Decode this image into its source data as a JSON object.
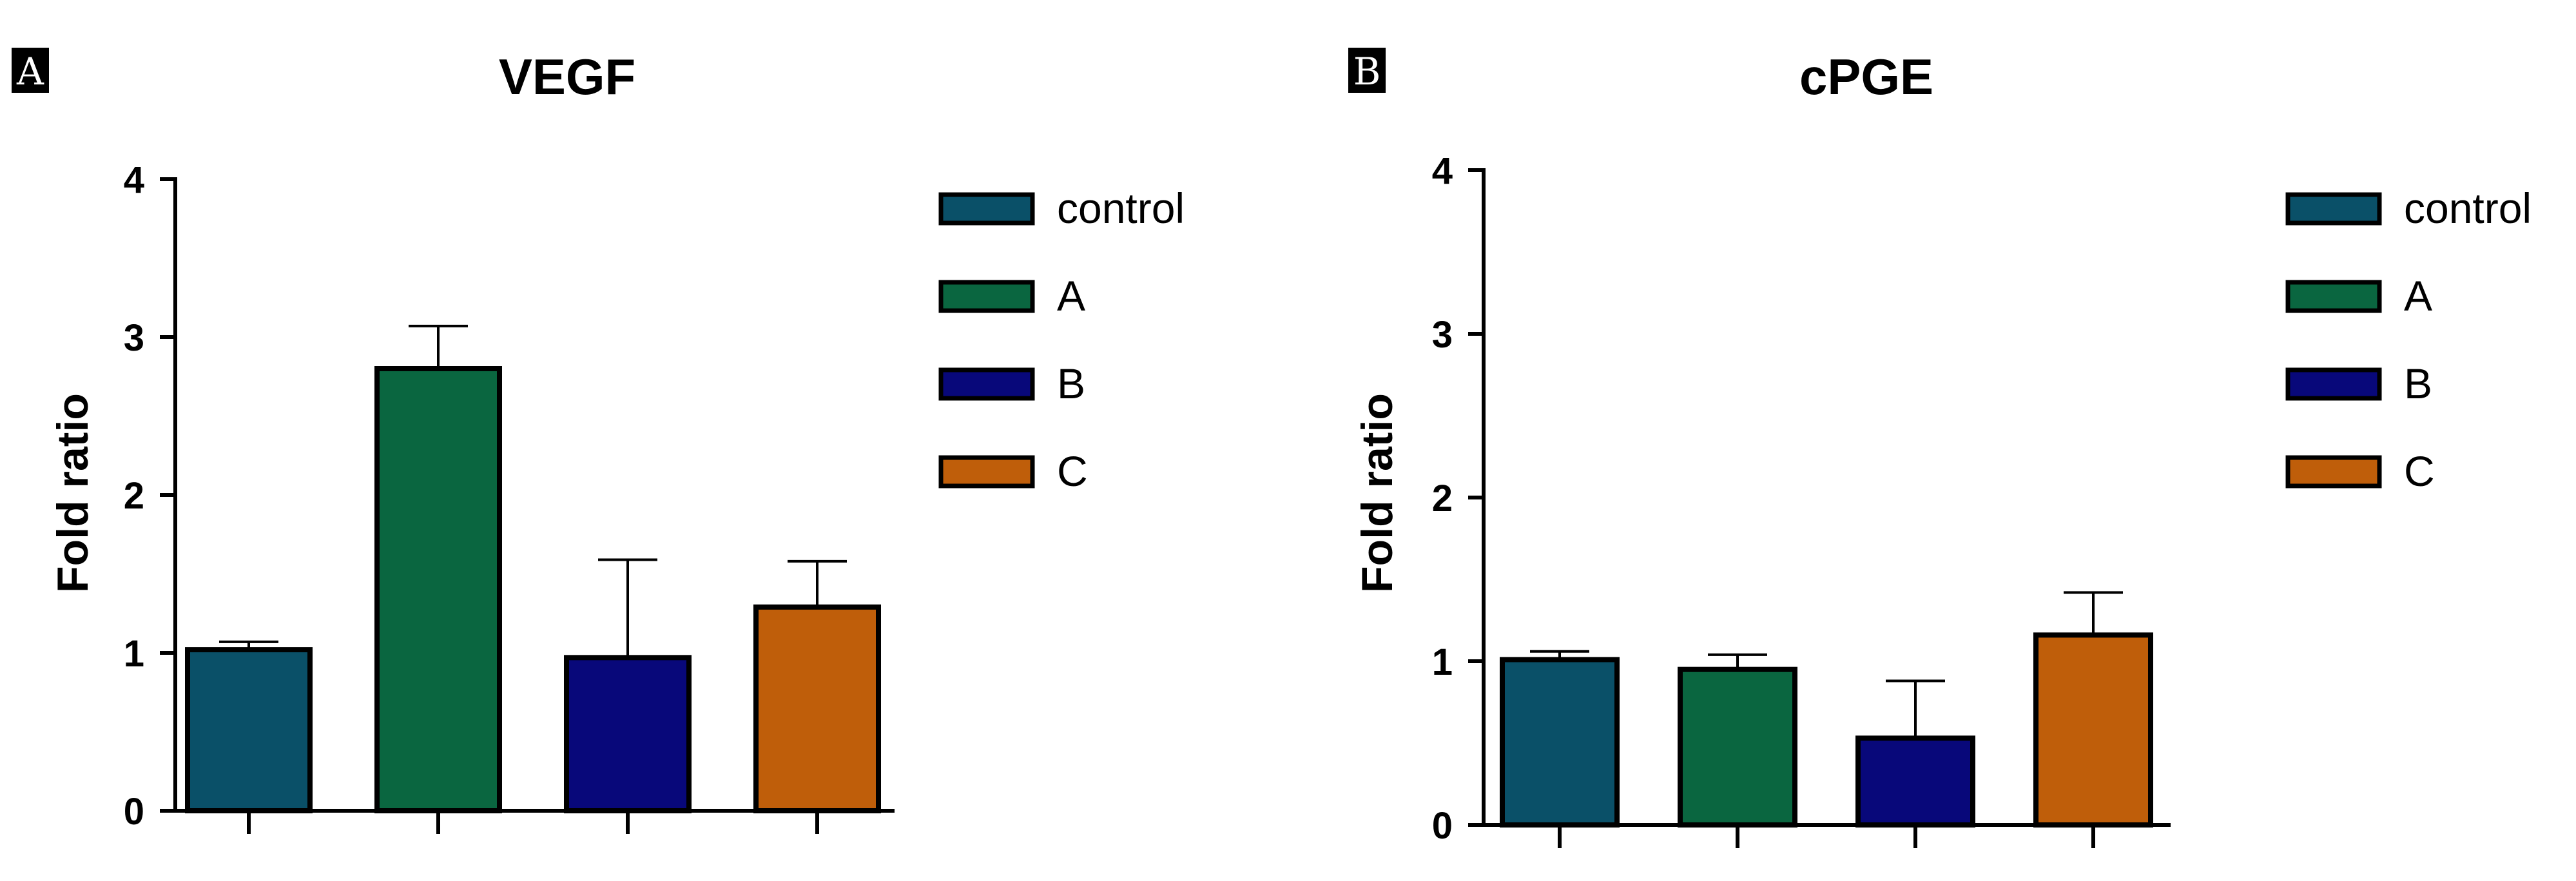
{
  "chart_data": [
    {
      "type": "bar",
      "panel_label": "A",
      "title": "VEGF",
      "xlabel": "",
      "ylabel": "Fold ratio",
      "ylim": [
        0,
        4
      ],
      "yticks": [
        "0",
        "1",
        "2",
        "3",
        "4"
      ],
      "categories": [
        "control",
        "A",
        "B",
        "C"
      ],
      "values": [
        1.02,
        2.8,
        0.97,
        1.29
      ],
      "errors": [
        0.05,
        0.27,
        0.62,
        0.29
      ],
      "colors": [
        "#0a5068",
        "#0a6640",
        "#08087a",
        "#bf5e0a"
      ],
      "legend": [
        "control",
        "A",
        "B",
        "C"
      ],
      "legend_position": "top-right"
    },
    {
      "type": "bar",
      "panel_label": "B",
      "title": "cPGE",
      "xlabel": "",
      "ylabel": "Fold ratio",
      "ylim": [
        0,
        4
      ],
      "yticks": [
        "0",
        "1",
        "2",
        "3",
        "4"
      ],
      "categories": [
        "control",
        "A",
        "B",
        "C"
      ],
      "values": [
        1.01,
        0.95,
        0.53,
        1.16
      ],
      "errors": [
        0.05,
        0.09,
        0.35,
        0.26
      ],
      "colors": [
        "#0a5068",
        "#0a6640",
        "#08087a",
        "#bf5e0a"
      ],
      "legend": [
        "control",
        "A",
        "B",
        "C"
      ],
      "legend_position": "top-right"
    }
  ]
}
